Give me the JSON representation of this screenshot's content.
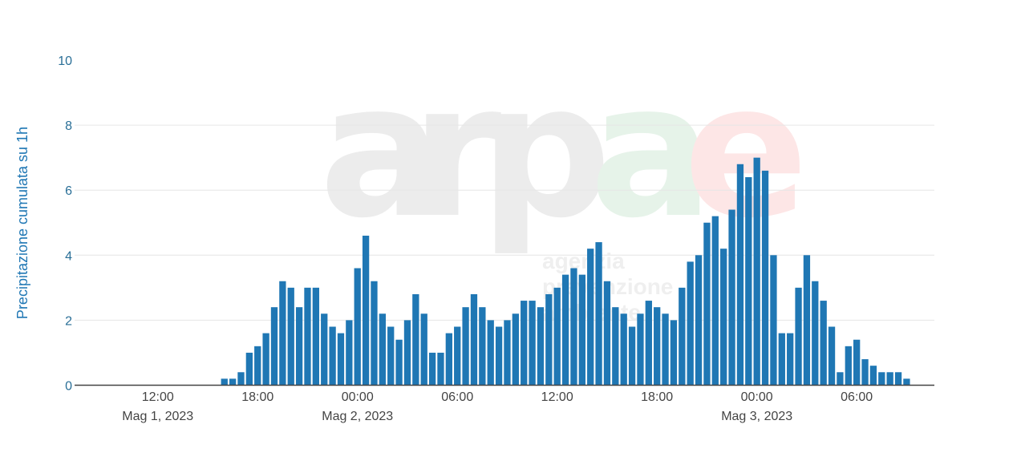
{
  "watermark": {
    "logo_text": "arpae",
    "tagline_lines": [
      "agenzia",
      "prevenzione",
      "ambiente"
    ],
    "colors": {
      "gray": "#ececec",
      "green": "#e6f3e9",
      "red": "#fde6e6"
    }
  },
  "colors": {
    "bar": "#1f77b4",
    "grid": "#e6e6e6",
    "axis_line": "#444444",
    "ylabel": "#1f77b4"
  },
  "chart_data": {
    "type": "bar",
    "ylabel": "Precipitazione cumulata su 1h",
    "ylim": [
      0,
      10
    ],
    "yticks": [
      0,
      2,
      4,
      6,
      8,
      10
    ],
    "xlim": [
      "2023-05-01T07:00",
      "2023-05-03T10:40"
    ],
    "xticks": [
      {
        "time": "2023-05-01T12:00",
        "label": "12:00",
        "sublabel": "Mag 1, 2023"
      },
      {
        "time": "2023-05-01T18:00",
        "label": "18:00",
        "sublabel": ""
      },
      {
        "time": "2023-05-02T00:00",
        "label": "00:00",
        "sublabel": "Mag 2, 2023"
      },
      {
        "time": "2023-05-02T06:00",
        "label": "06:00",
        "sublabel": ""
      },
      {
        "time": "2023-05-02T12:00",
        "label": "12:00",
        "sublabel": ""
      },
      {
        "time": "2023-05-02T18:00",
        "label": "18:00",
        "sublabel": ""
      },
      {
        "time": "2023-05-03T00:00",
        "label": "00:00",
        "sublabel": "Mag 3, 2023"
      },
      {
        "time": "2023-05-03T06:00",
        "label": "06:00",
        "sublabel": ""
      }
    ],
    "grid": true,
    "bar_interval_minutes": 30,
    "first_bar_time": "2023-05-01T16:00",
    "values": [
      0.2,
      0.2,
      0.4,
      1.0,
      1.2,
      1.6,
      2.4,
      3.2,
      3.0,
      2.4,
      3.0,
      3.0,
      2.2,
      1.8,
      1.6,
      2.0,
      3.6,
      4.6,
      3.2,
      2.2,
      1.8,
      1.4,
      2.0,
      2.8,
      2.2,
      1.0,
      1.0,
      1.6,
      1.8,
      2.4,
      2.8,
      2.4,
      2.0,
      1.8,
      2.0,
      2.2,
      2.6,
      2.6,
      2.4,
      2.8,
      3.0,
      3.4,
      3.6,
      3.4,
      4.2,
      4.4,
      3.2,
      2.4,
      2.2,
      1.8,
      2.2,
      2.6,
      2.4,
      2.2,
      2.0,
      3.0,
      3.8,
      4.0,
      5.0,
      5.2,
      4.2,
      5.4,
      6.8,
      6.4,
      7.0,
      6.6,
      4.0,
      1.6,
      1.6,
      3.0,
      4.0,
      3.2,
      2.6,
      1.8,
      0.4,
      1.2,
      1.4,
      0.8,
      0.6,
      0.4,
      0.4,
      0.4,
      0.2
    ]
  }
}
